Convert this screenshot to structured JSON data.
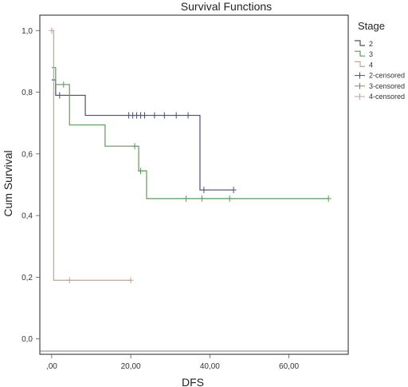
{
  "chart_data": {
    "type": "line",
    "title": "Survival Functions",
    "xlabel": "DFS",
    "ylabel": "Cum Survival",
    "xlim": [
      -3,
      75
    ],
    "ylim": [
      -0.05,
      1.05
    ],
    "x_ticks": [
      0,
      20,
      40,
      60
    ],
    "x_tick_labels": [
      ",00",
      "20,00",
      "40,00",
      "60,00"
    ],
    "y_ticks": [
      0.0,
      0.2,
      0.4,
      0.6,
      0.8,
      1.0
    ],
    "y_tick_labels": [
      "0,0",
      "0,2",
      "0,4",
      "0,6",
      "0,8",
      "1,0"
    ],
    "grid": false,
    "legend_title": "Stage",
    "legend_placement": "right",
    "series": [
      {
        "name": "2",
        "color": "#4a4f6e",
        "steps": [
          [
            0,
            0.84
          ],
          [
            1,
            0.79
          ],
          [
            8.5,
            0.725
          ],
          [
            37.5,
            0.483
          ],
          [
            46,
            0.483
          ]
        ],
        "censored_label": "2-censored",
        "censored": [
          [
            2,
            0.79
          ],
          [
            19.5,
            0.725
          ],
          [
            20.5,
            0.725
          ],
          [
            21.5,
            0.725
          ],
          [
            22.5,
            0.725
          ],
          [
            23.5,
            0.725
          ],
          [
            26,
            0.725
          ],
          [
            28.5,
            0.725
          ],
          [
            31.5,
            0.725
          ],
          [
            34.5,
            0.725
          ],
          [
            38.5,
            0.483
          ],
          [
            46,
            0.483
          ]
        ]
      },
      {
        "name": "3",
        "color": "#5c9a5c",
        "steps": [
          [
            0,
            0.88
          ],
          [
            1,
            0.825
          ],
          [
            4.5,
            0.694
          ],
          [
            13.5,
            0.625
          ],
          [
            22,
            0.545
          ],
          [
            24,
            0.455
          ],
          [
            70,
            0.455
          ]
        ],
        "censored_label": "3-censored",
        "censored": [
          [
            3,
            0.825
          ],
          [
            21,
            0.625
          ],
          [
            22.5,
            0.545
          ],
          [
            34,
            0.455
          ],
          [
            38,
            0.455
          ],
          [
            45,
            0.455
          ],
          [
            70,
            0.455
          ]
        ]
      },
      {
        "name": "4",
        "color": "#c8a090",
        "steps": [
          [
            0,
            1.0
          ],
          [
            0.5,
            0.19
          ],
          [
            20,
            0.19
          ]
        ],
        "censored_label": "4-censored",
        "censored": [
          [
            0,
            1.0
          ],
          [
            4.5,
            0.19
          ],
          [
            20,
            0.19
          ]
        ]
      }
    ]
  }
}
